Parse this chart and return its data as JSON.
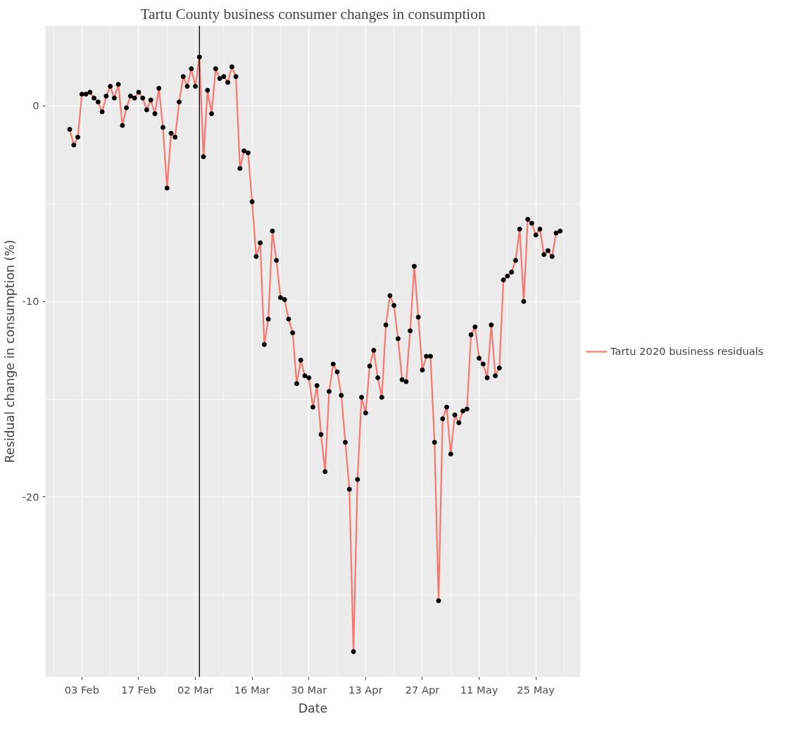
{
  "chart_data": {
    "type": "line",
    "title": "Tartu County business consumer changes in consumption",
    "xlabel": "Date",
    "ylabel": "Residual change in consumption (%)",
    "xlim": [
      "2020-01-25",
      "2020-06-05"
    ],
    "xticks": [
      {
        "value": "2020-02-03",
        "label": "03 Feb"
      },
      {
        "value": "2020-02-17",
        "label": "17 Feb"
      },
      {
        "value": "2020-03-02",
        "label": "02 Mar"
      },
      {
        "value": "2020-03-16",
        "label": "16 Mar"
      },
      {
        "value": "2020-03-30",
        "label": "30 Mar"
      },
      {
        "value": "2020-04-13",
        "label": "13 Apr"
      },
      {
        "value": "2020-04-27",
        "label": "27 Apr"
      },
      {
        "value": "2020-05-11",
        "label": "11 May"
      },
      {
        "value": "2020-05-25",
        "label": "25 May"
      }
    ],
    "ylim": [
      -29.2,
      4.1
    ],
    "yticks": [
      -20,
      -10,
      0
    ],
    "grid": true,
    "legend": "right",
    "marker": "circle",
    "line_style": "solid",
    "ref_lines": [
      {
        "axis": "x",
        "value": "2020-03-03",
        "label": null,
        "color": "#000000"
      }
    ],
    "x": [
      "2020-01-31",
      "2020-02-01",
      "2020-02-02",
      "2020-02-03",
      "2020-02-04",
      "2020-02-05",
      "2020-02-06",
      "2020-02-07",
      "2020-02-08",
      "2020-02-09",
      "2020-02-10",
      "2020-02-11",
      "2020-02-12",
      "2020-02-13",
      "2020-02-14",
      "2020-02-15",
      "2020-02-16",
      "2020-02-17",
      "2020-02-18",
      "2020-02-19",
      "2020-02-20",
      "2020-02-21",
      "2020-02-22",
      "2020-02-23",
      "2020-02-24",
      "2020-02-25",
      "2020-02-26",
      "2020-02-27",
      "2020-02-28",
      "2020-02-29",
      "2020-03-01",
      "2020-03-02",
      "2020-03-03",
      "2020-03-04",
      "2020-03-05",
      "2020-03-06",
      "2020-03-07",
      "2020-03-08",
      "2020-03-09",
      "2020-03-10",
      "2020-03-11",
      "2020-03-12",
      "2020-03-13",
      "2020-03-14",
      "2020-03-15",
      "2020-03-16",
      "2020-03-17",
      "2020-03-18",
      "2020-03-19",
      "2020-03-20",
      "2020-03-21",
      "2020-03-22",
      "2020-03-23",
      "2020-03-24",
      "2020-03-25",
      "2020-03-26",
      "2020-03-27",
      "2020-03-28",
      "2020-03-29",
      "2020-03-30",
      "2020-03-31",
      "2020-04-01",
      "2020-04-02",
      "2020-04-03",
      "2020-04-04",
      "2020-04-05",
      "2020-04-06",
      "2020-04-07",
      "2020-04-08",
      "2020-04-09",
      "2020-04-10",
      "2020-04-11",
      "2020-04-12",
      "2020-04-13",
      "2020-04-14",
      "2020-04-15",
      "2020-04-16",
      "2020-04-17",
      "2020-04-18",
      "2020-04-19",
      "2020-04-20",
      "2020-04-21",
      "2020-04-22",
      "2020-04-23",
      "2020-04-24",
      "2020-04-25",
      "2020-04-26",
      "2020-04-27",
      "2020-04-28",
      "2020-04-29",
      "2020-04-30",
      "2020-05-01",
      "2020-05-02",
      "2020-05-03",
      "2020-05-04",
      "2020-05-05",
      "2020-05-06",
      "2020-05-07",
      "2020-05-08",
      "2020-05-09",
      "2020-05-10",
      "2020-05-11",
      "2020-05-12",
      "2020-05-13",
      "2020-05-14",
      "2020-05-15",
      "2020-05-16",
      "2020-05-17",
      "2020-05-18",
      "2020-05-19",
      "2020-05-20",
      "2020-05-21",
      "2020-05-22",
      "2020-05-23",
      "2020-05-24",
      "2020-05-25",
      "2020-05-26",
      "2020-05-27",
      "2020-05-28",
      "2020-05-29",
      "2020-05-30",
      "2020-05-31"
    ],
    "series": [
      {
        "name": "Tartu 2020 business residuals",
        "color": "#f8766d",
        "values": [
          -1.2,
          -2.0,
          -1.6,
          0.6,
          0.6,
          0.7,
          0.4,
          0.2,
          -0.3,
          0.5,
          1.0,
          0.4,
          1.1,
          -1.0,
          -0.1,
          0.5,
          0.4,
          0.7,
          0.4,
          -0.2,
          0.3,
          -0.4,
          0.9,
          -1.1,
          -4.2,
          -1.4,
          -1.6,
          0.2,
          1.5,
          1.0,
          1.9,
          1.0,
          2.5,
          -2.6,
          0.8,
          -0.4,
          1.9,
          1.4,
          1.5,
          1.2,
          2.0,
          1.5,
          -3.2,
          -2.3,
          -2.4,
          -4.9,
          -7.7,
          -7.0,
          -12.2,
          -10.9,
          -6.4,
          -7.9,
          -9.8,
          -9.9,
          -10.9,
          -11.6,
          -14.2,
          -13.0,
          -13.8,
          -13.9,
          -15.4,
          -14.3,
          -16.8,
          -18.7,
          -14.6,
          -13.2,
          -13.6,
          -14.8,
          -17.2,
          -19.6,
          -27.9,
          -19.1,
          -14.9,
          -15.7,
          -13.3,
          -12.5,
          -13.9,
          -14.9,
          -11.2,
          -9.7,
          -10.2,
          -11.9,
          -14.0,
          -14.1,
          -11.5,
          -8.2,
          -10.8,
          -13.5,
          -12.8,
          -12.8,
          -17.2,
          -25.3,
          -16.0,
          -15.4,
          -17.8,
          -15.8,
          -16.2,
          -15.6,
          -15.5,
          -11.7,
          -11.3,
          -12.9,
          -13.2,
          -13.9,
          -11.2,
          -13.8,
          -13.4,
          -8.9,
          -8.7,
          -8.5,
          -7.9,
          -6.3,
          -10.0,
          -5.8,
          -6.0,
          -6.6,
          -6.3,
          -7.6,
          -7.4,
          -7.7,
          -6.5,
          -6.4
        ]
      }
    ]
  }
}
